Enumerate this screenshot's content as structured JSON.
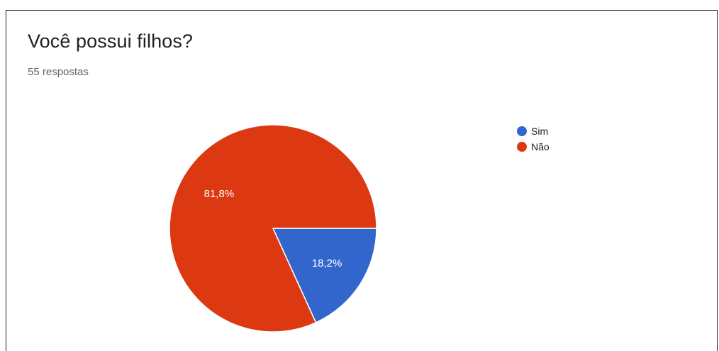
{
  "header": {
    "title": "Você possui filhos?",
    "subtitle": "55 respostas"
  },
  "chart_data": {
    "type": "pie",
    "title": "Você possui filhos?",
    "subtitle": "55 respostas",
    "start_angle_deg": 90,
    "direction": "clockwise",
    "slices": [
      {
        "label": "Sim",
        "value": 18.2,
        "display": "18,2%",
        "color": "#3366cc"
      },
      {
        "label": "Não",
        "value": 81.8,
        "display": "81,8%",
        "color": "#dc3912"
      }
    ],
    "legend": {
      "position": "right",
      "items": [
        "Sim",
        "Não"
      ]
    }
  }
}
